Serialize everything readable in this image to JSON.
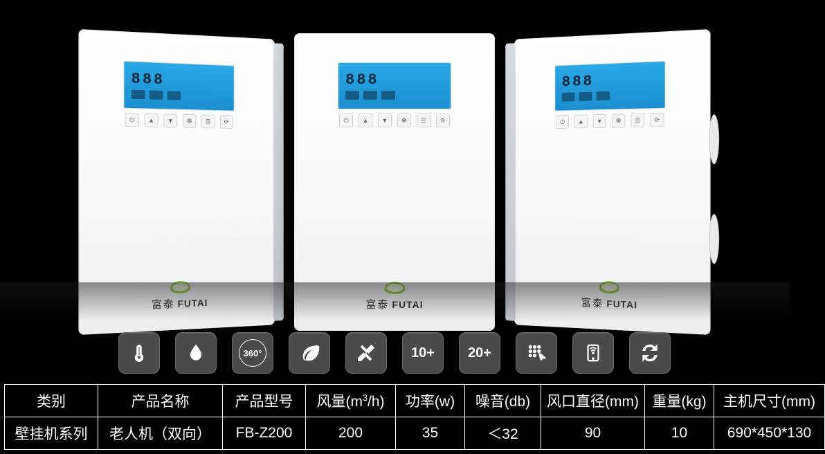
{
  "background_color": "#000000",
  "device": {
    "body_gradient": [
      "#ffffff",
      "#f7f8f9",
      "#eceef0"
    ],
    "screen": {
      "bg_gradient": [
        "#2aa8e6",
        "#1c8fd1"
      ],
      "digits": "888",
      "digit_color": "#03263a"
    },
    "button_count": 6,
    "brand_cn": "富泰",
    "brand_en": "FUTAI",
    "logo_color": "#8fc642"
  },
  "features": [
    {
      "name": "thermometer-icon",
      "type": "svg-thermo"
    },
    {
      "name": "drop-icon",
      "type": "svg-drop"
    },
    {
      "name": "rotate360-icon",
      "type": "text",
      "label": "360°",
      "circ": true
    },
    {
      "name": "leaf-icon",
      "type": "svg-leaf"
    },
    {
      "name": "tools-icon",
      "type": "svg-tools"
    },
    {
      "name": "ten-plus-icon",
      "type": "text",
      "label": "10+"
    },
    {
      "name": "twenty-plus-icon",
      "type": "text",
      "label": "20+"
    },
    {
      "name": "keypad-touch-icon",
      "type": "svg-keypad"
    },
    {
      "name": "phone-wifi-icon",
      "type": "svg-phone"
    },
    {
      "name": "sync-icon",
      "type": "svg-sync"
    }
  ],
  "feature_tile": {
    "bg": "#494a4c",
    "border": "#6a6b6d",
    "radius": 10,
    "size": 60,
    "gap": 22
  },
  "spec_table": {
    "border_color": "#ffffff",
    "text_color": "#ffffff",
    "font_size": 21,
    "columns": [
      {
        "key": "category",
        "label": "类别",
        "width": 135
      },
      {
        "key": "name",
        "label": "产品名称",
        "width": 180
      },
      {
        "key": "model",
        "label": "产品型号",
        "width": 120
      },
      {
        "key": "airflow",
        "label_html": "风量(m³/h)",
        "width": 130
      },
      {
        "key": "power",
        "label": "功率(w)",
        "width": 100
      },
      {
        "key": "noise",
        "label": "噪音(db)",
        "width": 110
      },
      {
        "key": "ventdia",
        "label": "风口直径(mm)",
        "width": 150
      },
      {
        "key": "weight",
        "label": "重量(kg)",
        "width": 100
      },
      {
        "key": "dim",
        "label": "主机尺寸(mm)",
        "width": 160
      }
    ],
    "row": {
      "category": "壁挂机系列",
      "name": "老人机（双向）",
      "model": "FB-Z200",
      "airflow": "200",
      "power": "35",
      "noise": "＜32",
      "ventdia": "90",
      "weight": "10",
      "dim": "690*450*130"
    }
  }
}
